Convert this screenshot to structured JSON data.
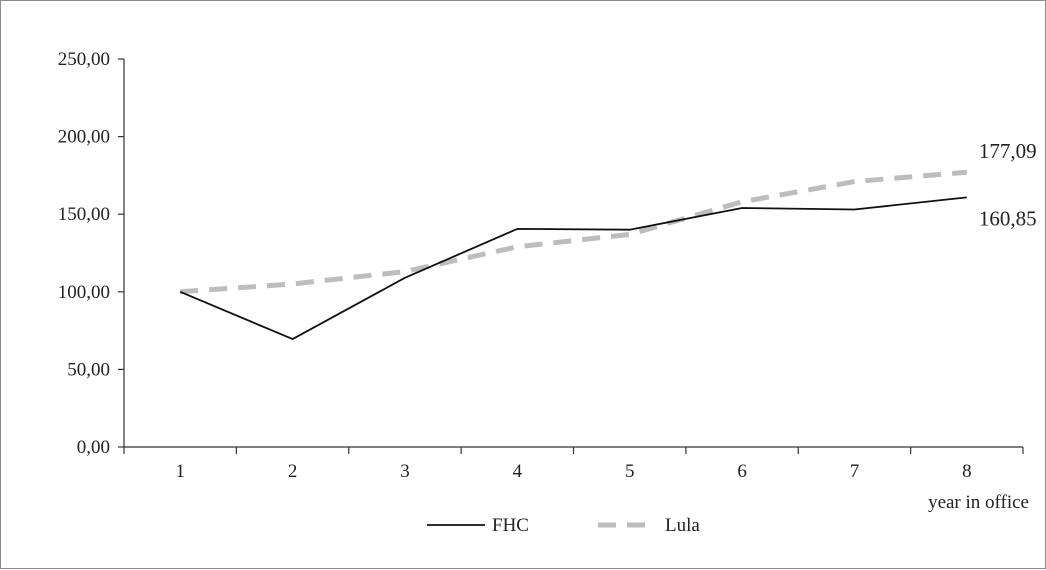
{
  "chart_data": {
    "type": "line",
    "title": "",
    "xlabel": "year in office",
    "ylabel": "",
    "x": [
      1,
      2,
      3,
      4,
      5,
      6,
      7,
      8
    ],
    "xlim": [
      0.5,
      8.5
    ],
    "ylim": [
      0,
      250
    ],
    "yticks": [
      0,
      50,
      100,
      150,
      200,
      250
    ],
    "ytick_labels": [
      "0,00",
      "50,00",
      "100,00",
      "150,00",
      "200,00",
      "250,00"
    ],
    "xtick_labels": [
      "1",
      "2",
      "3",
      "4",
      "5",
      "6",
      "7",
      "8"
    ],
    "grid": false,
    "legend_position": "bottom",
    "series": [
      {
        "name": "FHC",
        "values": [
          100,
          69.5,
          109,
          140.5,
          140,
          154,
          153,
          160.85
        ],
        "color": "#111111",
        "style": "solid"
      },
      {
        "name": "Lula",
        "values": [
          100,
          105,
          113,
          129,
          137,
          158,
          171,
          177.09
        ],
        "color": "#bdbdbd",
        "style": "dashed"
      }
    ],
    "annotations": [
      {
        "series": "Lula",
        "x": 8,
        "text": "177,09"
      },
      {
        "series": "FHC",
        "x": 8,
        "text": "160,85"
      }
    ]
  }
}
